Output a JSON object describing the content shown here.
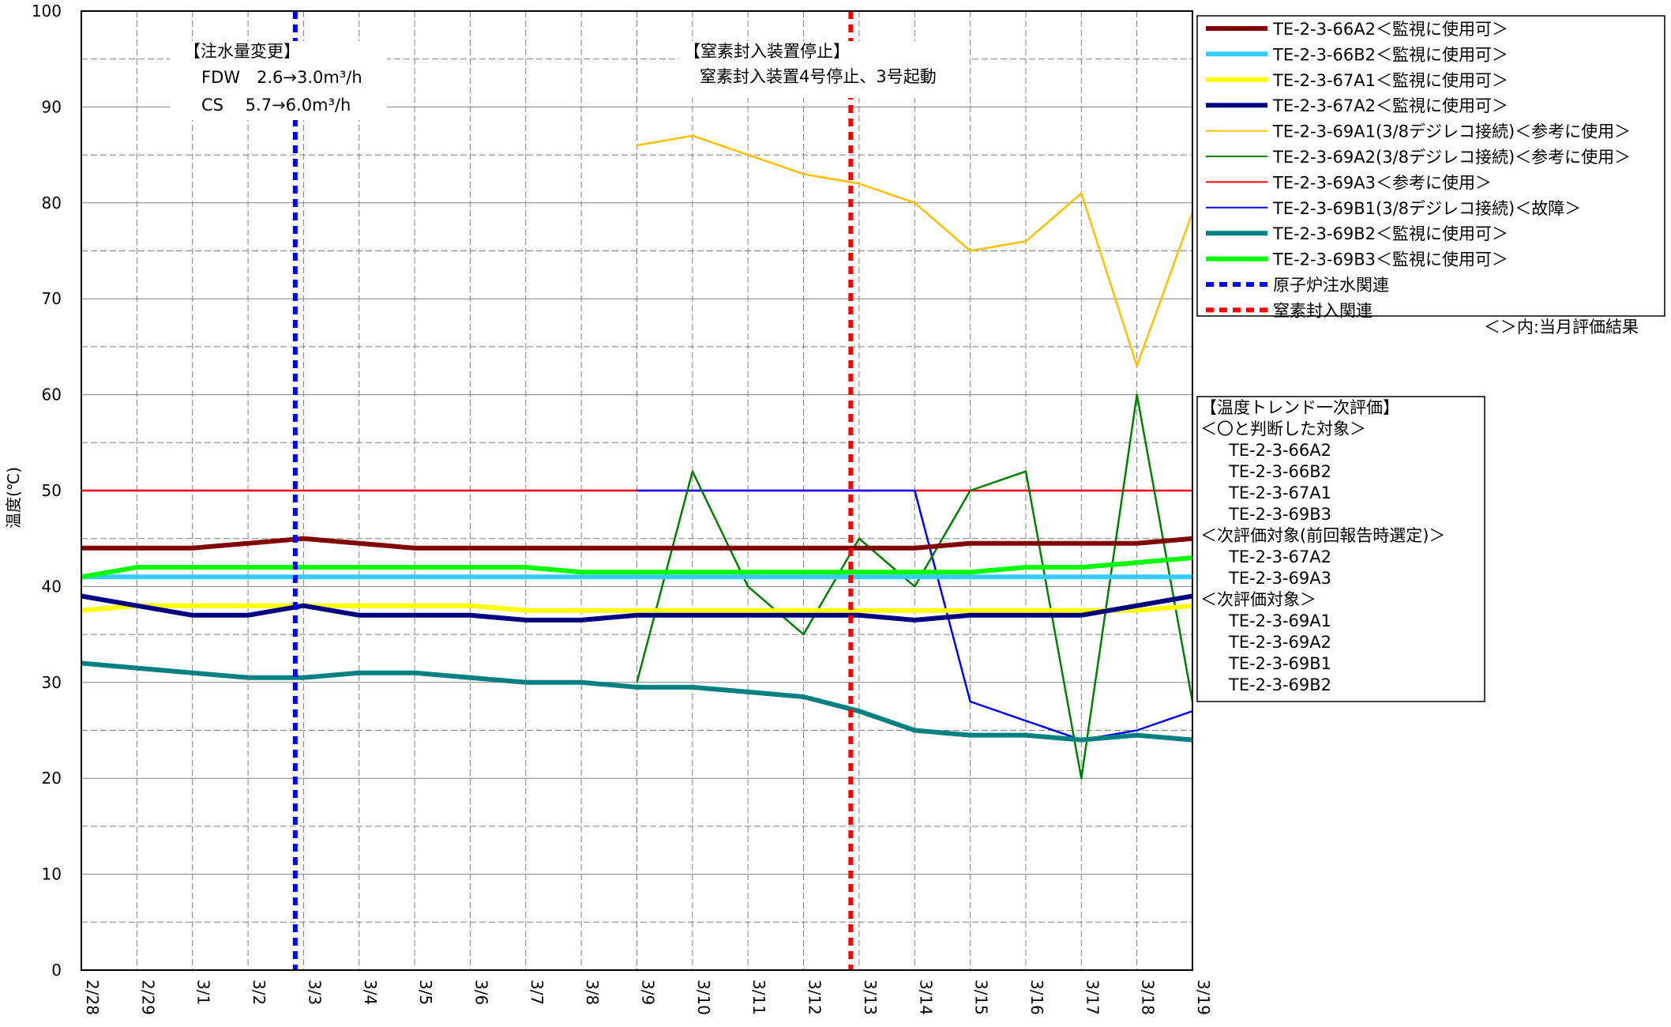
{
  "chart_data": {
    "type": "line",
    "ylabel": "温度(℃)",
    "ylim": [
      0,
      100
    ],
    "ytick_labels": [
      "0",
      "10",
      "20",
      "30",
      "40",
      "50",
      "60",
      "70",
      "80",
      "90",
      "100"
    ],
    "categories": [
      "2/28",
      "2/29",
      "3/1",
      "3/2",
      "3/3",
      "3/4",
      "3/5",
      "3/6",
      "3/7",
      "3/8",
      "3/9",
      "3/10",
      "3/11",
      "3/12",
      "3/13",
      "3/14",
      "3/15",
      "3/16",
      "3/17",
      "3/18",
      "3/19"
    ],
    "grid": true,
    "legend_position": "right",
    "series": [
      {
        "name": "TE-2-3-66A2＜監視に使用可＞",
        "color": "#800000",
        "width": "thick",
        "values": [
          44,
          44,
          44,
          44.5,
          45,
          44.5,
          44,
          44,
          44,
          44,
          44,
          44,
          44,
          44,
          44,
          44,
          44.5,
          44.5,
          44.5,
          44.5,
          45
        ]
      },
      {
        "name": "TE-2-3-66B2＜監視に使用可＞",
        "color": "#33ccff",
        "width": "thick",
        "values": [
          41,
          41,
          41,
          41,
          41,
          41,
          41,
          41,
          41,
          41,
          41,
          41,
          41,
          41,
          41,
          41,
          41,
          41,
          41,
          41,
          41
        ]
      },
      {
        "name": "TE-2-3-67A1＜監視に使用可＞",
        "color": "#ffff00",
        "width": "thick",
        "values": [
          37.5,
          38,
          38,
          38,
          38,
          38,
          38,
          38,
          37.5,
          37.5,
          37.5,
          37.5,
          37.5,
          37.5,
          37.5,
          37.5,
          37.5,
          37.5,
          37.5,
          37.5,
          38
        ]
      },
      {
        "name": "TE-2-3-67A2＜監視に使用可＞",
        "color": "#000080",
        "width": "thick",
        "values": [
          39,
          38,
          37,
          37,
          38,
          37,
          37,
          37,
          36.5,
          36.5,
          37,
          37,
          37,
          37,
          37,
          36.5,
          37,
          37,
          37,
          38,
          39
        ]
      },
      {
        "name": "TE-2-3-69A1(3/8デジレコ接続)＜参考に使用＞",
        "color": "#ffc000",
        "width": "thin",
        "values": [
          null,
          null,
          null,
          null,
          null,
          null,
          null,
          null,
          null,
          null,
          86,
          87,
          85,
          83,
          82,
          80,
          75,
          76,
          81,
          63,
          79
        ]
      },
      {
        "name": "TE-2-3-69A2(3/8デジレコ接続)＜参考に使用＞",
        "color": "#008000",
        "width": "thin",
        "values": [
          null,
          null,
          null,
          null,
          null,
          null,
          null,
          null,
          null,
          null,
          30,
          52,
          40,
          35,
          45,
          40,
          50,
          52,
          20,
          60,
          28
        ]
      },
      {
        "name": "TE-2-3-69A3＜参考に使用＞",
        "color": "#ff0000",
        "width": "thin",
        "values": [
          50,
          50,
          50,
          50,
          50,
          50,
          50,
          50,
          50,
          50,
          50,
          50,
          50,
          50,
          50,
          50,
          50,
          50,
          50,
          50,
          50
        ]
      },
      {
        "name": "TE-2-3-69B1(3/8デジレコ接続)＜故障＞",
        "color": "#0000ff",
        "width": "thin",
        "values": [
          null,
          null,
          null,
          null,
          null,
          null,
          null,
          null,
          null,
          null,
          50,
          50,
          50,
          50,
          50,
          50,
          28,
          26,
          24,
          25,
          27
        ]
      },
      {
        "name": "TE-2-3-69B2＜監視に使用可＞",
        "color": "#008080",
        "width": "thick",
        "values": [
          32,
          31.5,
          31,
          30.5,
          30.5,
          31,
          31,
          30.5,
          30,
          30,
          29.5,
          29.5,
          29,
          28.5,
          27,
          25,
          24.5,
          24.5,
          24,
          24.5,
          24
        ]
      },
      {
        "name": "TE-2-3-69B3＜監視に使用可＞",
        "color": "#00ff00",
        "width": "thick",
        "values": [
          41,
          42,
          42,
          42,
          42,
          42,
          42,
          42,
          42,
          41.5,
          41.5,
          41.5,
          41.5,
          41.5,
          41.5,
          41.5,
          41.5,
          42,
          42,
          42.5,
          43
        ]
      }
    ],
    "event_series": [
      {
        "name": "原子炉注水関連",
        "color": "#0000ff",
        "style": "dashed",
        "x": "3/2"
      },
      {
        "name": "窒素封入関連",
        "color": "#ff0000",
        "style": "dashed",
        "x": "3/12"
      }
    ],
    "legend_note": "＜＞内:当月評価結果",
    "annotations": {
      "water": {
        "title": "【注水量変更】",
        "line1": "FDW　2.6→3.0m³/h",
        "line2": "CS　 5.7→6.0m³/h"
      },
      "nitrogen": {
        "title": "【窒素封入装置停止】",
        "line1": "窒素封入装置4号停止、3号起動"
      }
    },
    "evaluation_box": {
      "title": "【温度トレンド一次評価】",
      "groups": [
        {
          "header": "＜〇と判断した対象＞",
          "items": [
            "TE-2-3-66A2",
            "TE-2-3-66B2",
            "TE-2-3-67A1",
            "TE-2-3-69B3"
          ]
        },
        {
          "header": "＜次評価対象(前回報告時選定)＞",
          "items": [
            "TE-2-3-67A2",
            "TE-2-3-69A3"
          ]
        },
        {
          "header": "＜次評価対象＞",
          "items": [
            "TE-2-3-69A1",
            "TE-2-3-69A2",
            "TE-2-3-69B1",
            "TE-2-3-69B2"
          ]
        }
      ]
    }
  }
}
